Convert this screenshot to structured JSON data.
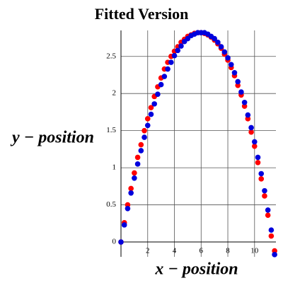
{
  "chart_data": {
    "type": "scatter",
    "title": "Fitted Version",
    "xlabel": "x − position",
    "ylabel": "y − position",
    "x": [
      0,
      0.25,
      0.5,
      0.75,
      1,
      1.25,
      1.5,
      1.75,
      2,
      2.25,
      2.5,
      2.75,
      3,
      3.25,
      3.5,
      3.75,
      4,
      4.25,
      4.5,
      4.75,
      5,
      5.25,
      5.5,
      5.75,
      6,
      6.25,
      6.5,
      6.75,
      7,
      7.25,
      7.5,
      7.75,
      8,
      8.25,
      8.5,
      8.75,
      9,
      9.25,
      9.5,
      9.75,
      10,
      10.25,
      10.5,
      10.75,
      11,
      11.25,
      11.5
    ],
    "series": [
      {
        "color": "#ff0000",
        "values": [
          0.0,
          0.26,
          0.5,
          0.72,
          0.93,
          1.14,
          1.31,
          1.5,
          1.66,
          1.81,
          1.96,
          2.09,
          2.21,
          2.33,
          2.42,
          2.5,
          2.57,
          2.63,
          2.69,
          2.73,
          2.77,
          2.79,
          2.81,
          2.82,
          2.82,
          2.81,
          2.79,
          2.76,
          2.72,
          2.67,
          2.61,
          2.53,
          2.45,
          2.35,
          2.24,
          2.11,
          1.98,
          1.83,
          1.66,
          1.48,
          1.29,
          1.07,
          0.85,
          0.62,
          0.36,
          0.08,
          -0.12
        ]
      },
      {
        "color": "#0000dd",
        "values": [
          0.0,
          0.23,
          0.45,
          0.66,
          0.86,
          1.05,
          1.23,
          1.41,
          1.57,
          1.72,
          1.86,
          1.99,
          2.12,
          2.23,
          2.33,
          2.42,
          2.51,
          2.58,
          2.64,
          2.7,
          2.74,
          2.78,
          2.8,
          2.82,
          2.82,
          2.82,
          2.8,
          2.77,
          2.74,
          2.69,
          2.63,
          2.56,
          2.48,
          2.39,
          2.28,
          2.16,
          2.02,
          1.88,
          1.71,
          1.54,
          1.35,
          1.14,
          0.92,
          0.69,
          0.43,
          0.16,
          -0.17
        ]
      }
    ],
    "xlim": [
      0,
      11.6
    ],
    "ylim": [
      -0.2,
      2.85
    ],
    "xticks": [
      2,
      4,
      6,
      8,
      10
    ],
    "yticks": [
      0,
      0.5,
      1,
      1.5,
      2,
      2.5
    ],
    "grid": true
  }
}
